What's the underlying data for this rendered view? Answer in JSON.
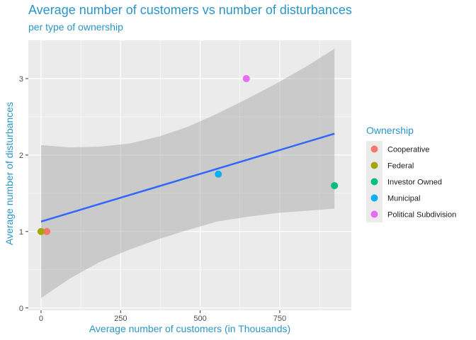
{
  "chart_data": {
    "type": "scatter",
    "title": "Average number of customers vs number of disturbances",
    "subtitle": "per type of ownership",
    "xlabel": "Average number of customers (in Thousands)",
    "ylabel": "Average number of disturbances",
    "xlim": [
      -40,
      975
    ],
    "ylim": [
      -0.03,
      3.5
    ],
    "x_ticks": [
      0,
      250,
      500,
      750
    ],
    "y_ticks": [
      0,
      1,
      2,
      3
    ],
    "grid": true,
    "legend": {
      "title": "Ownership",
      "placement": "right",
      "entries": [
        {
          "label": "Cooperative",
          "color": "#F8766D"
        },
        {
          "label": "Federal",
          "color": "#A3A500"
        },
        {
          "label": "Investor Owned",
          "color": "#00BF7D"
        },
        {
          "label": "Municipal",
          "color": "#00B0F6"
        },
        {
          "label": "Political Subdivision",
          "color": "#E76BF3"
        }
      ]
    },
    "points": [
      {
        "group": "Cooperative",
        "x": 18,
        "y": 1.0
      },
      {
        "group": "Federal",
        "x": 0,
        "y": 1.0
      },
      {
        "group": "Investor Owned",
        "x": 922,
        "y": 1.6
      },
      {
        "group": "Municipal",
        "x": 557,
        "y": 1.75
      },
      {
        "group": "Political Subdivision",
        "x": 645,
        "y": 3.0
      }
    ],
    "trend_line": {
      "type": "linear",
      "color": "#3366FF",
      "x": [
        0,
        922
      ],
      "y": [
        1.13,
        2.28
      ]
    },
    "confidence_band": {
      "color": "#999999",
      "x": [
        0,
        92,
        184,
        276,
        369,
        461,
        553,
        645,
        737,
        830,
        922
      ],
      "upper": [
        2.13,
        2.1,
        2.11,
        2.15,
        2.24,
        2.37,
        2.54,
        2.73,
        2.93,
        3.15,
        3.39
      ],
      "lower": [
        0.13,
        0.39,
        0.6,
        0.76,
        0.9,
        1.02,
        1.13,
        1.19,
        1.24,
        1.27,
        1.3
      ]
    }
  }
}
